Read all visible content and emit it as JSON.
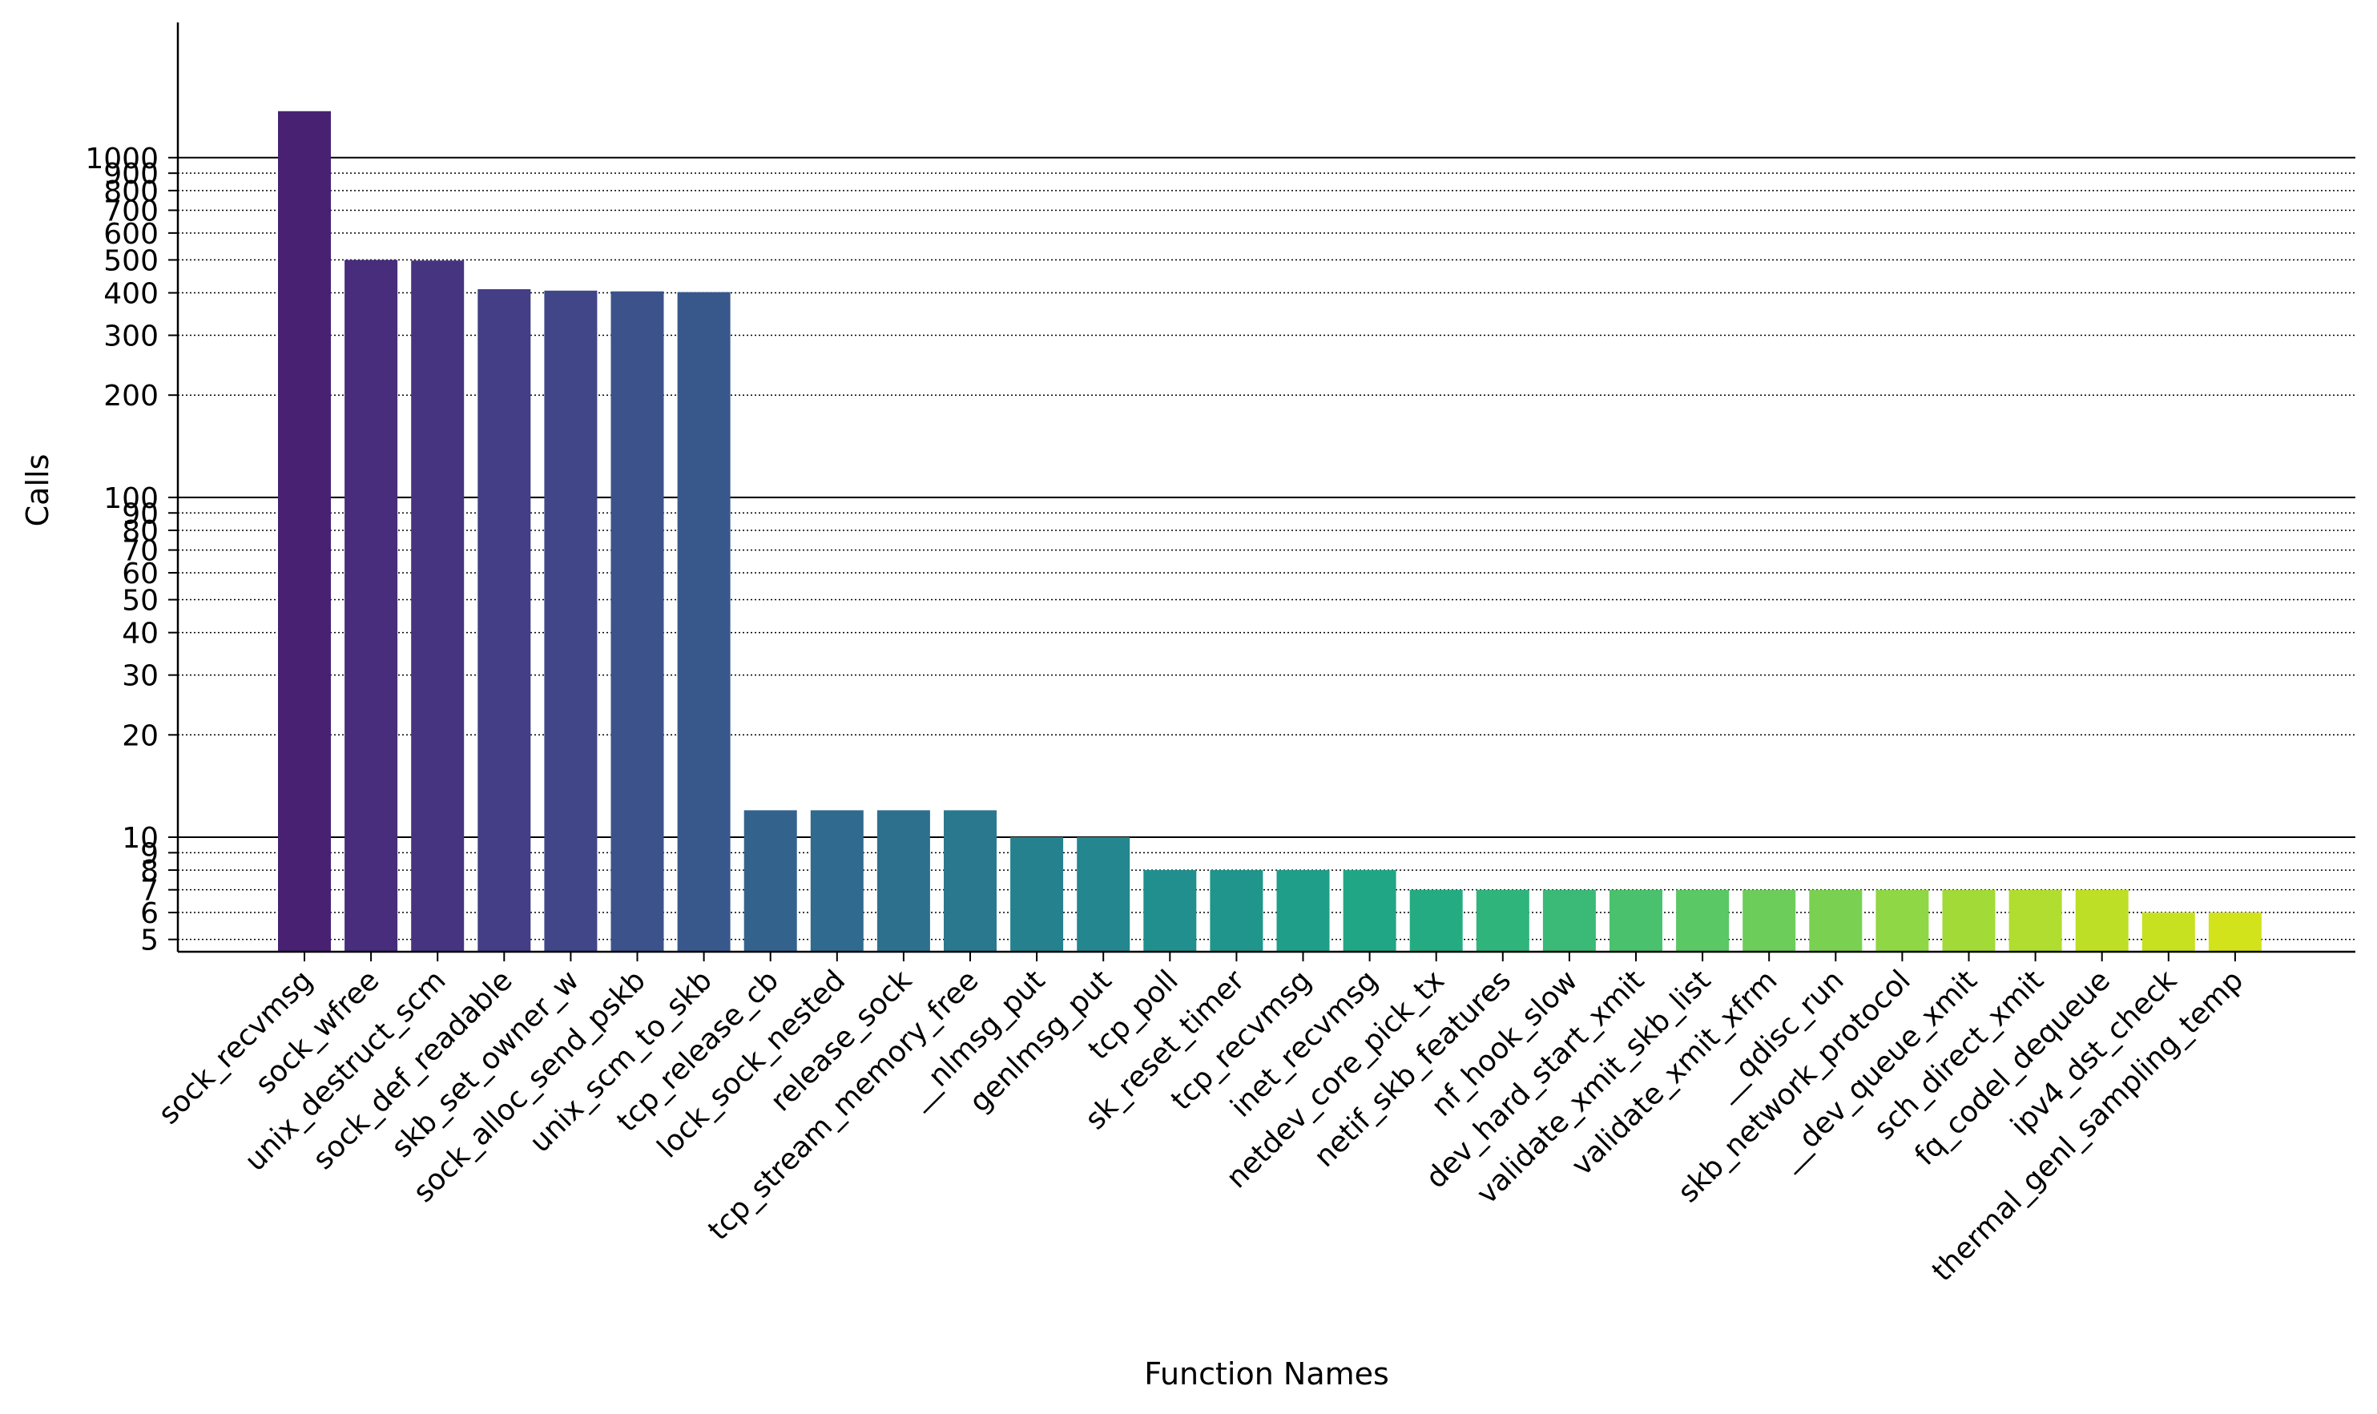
{
  "chart_data": {
    "type": "bar",
    "title": "",
    "xlabel": "Function Names",
    "ylabel": "Calls",
    "yscale": "log",
    "ylim": [
      4.6,
      2500
    ],
    "y_ticks": [
      5,
      6,
      7,
      8,
      9,
      10,
      20,
      30,
      40,
      50,
      60,
      70,
      80,
      90,
      100,
      200,
      300,
      400,
      500,
      600,
      700,
      800,
      900,
      1000
    ],
    "y_tick_labels": [
      "5",
      "6",
      "7",
      "8",
      "9",
      "10",
      "20",
      "30",
      "40",
      "50",
      "60",
      "70",
      "80",
      "90",
      "100",
      "200",
      "300",
      "400",
      "500",
      "600",
      "700",
      "800",
      "900",
      "1000"
    ],
    "grid": "y major solid, minor dotted",
    "legend": "none",
    "colormap": "viridis",
    "categories": [
      "sock_recvmsg",
      "sock_wfree",
      "unix_destruct_scm",
      "sock_def_readable",
      "skb_set_owner_w",
      "sock_alloc_send_pskb",
      "unix_scm_to_skb",
      "tcp_release_cb",
      "lock_sock_nested",
      "release_sock",
      "tcp_stream_memory_free",
      "__nlmsg_put",
      "genlmsg_put",
      "tcp_poll",
      "sk_reset_timer",
      "tcp_recvmsg",
      "inet_recvmsg",
      "netdev_core_pick_tx",
      "netif_skb_features",
      "nf_hook_slow",
      "dev_hard_start_xmit",
      "validate_xmit_skb_list",
      "validate_xmit_xfrm",
      "__qdisc_run",
      "skb_network_protocol",
      "__dev_queue_xmit",
      "sch_direct_xmit",
      "fq_codel_dequeue",
      "ipv4_dst_check",
      "thermal_genl_sampling_temp"
    ],
    "values": [
      1370,
      500,
      498,
      410,
      406,
      404,
      402,
      12,
      12,
      12,
      12,
      10,
      10,
      8,
      8,
      8,
      8,
      7,
      7,
      7,
      7,
      7,
      7,
      7,
      7,
      7,
      7,
      7,
      6,
      6
    ],
    "colors": [
      "#482173",
      "#472d7b",
      "#463480",
      "#433e85",
      "#404688",
      "#3b528b",
      "#38588c",
      "#33638d",
      "#306a8e",
      "#2d708e",
      "#2a788e",
      "#26818e",
      "#24868e",
      "#218f8d",
      "#1f958b",
      "#1f9e89",
      "#21a685",
      "#25ab82",
      "#2fb47c",
      "#3aba76",
      "#4ac16d",
      "#5ac864",
      "#6ccd5a",
      "#7ad151",
      "#8fd744",
      "#a2da37",
      "#b0dd2f",
      "#bddf26",
      "#c7e020",
      "#d2e21b"
    ]
  }
}
